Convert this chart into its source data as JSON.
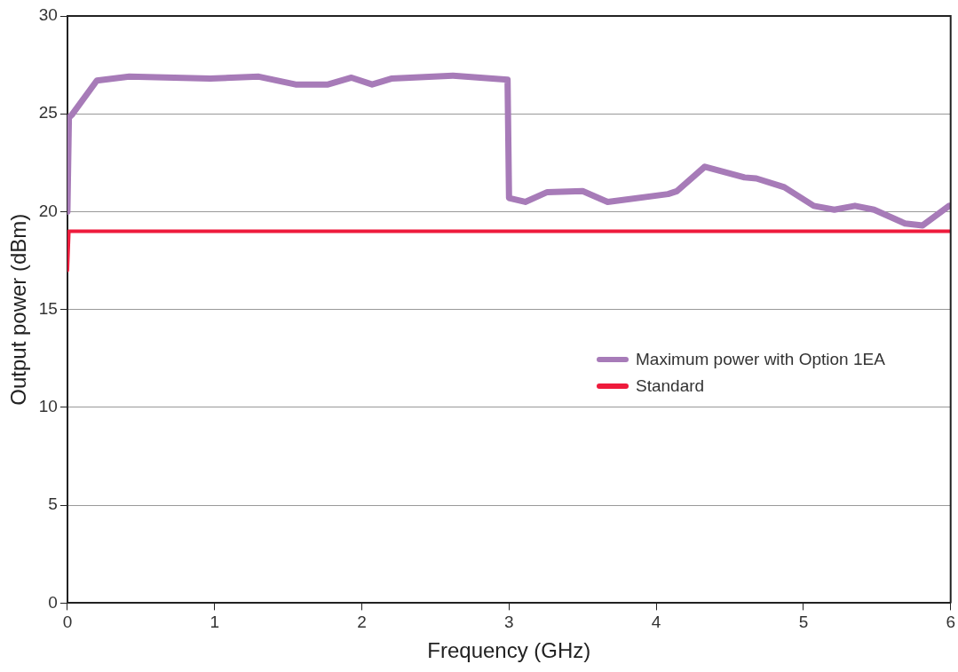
{
  "chart_data": {
    "type": "line",
    "xlabel": "Frequency (GHz)",
    "ylabel": "Output power (dBm)",
    "xlim": [
      0,
      6
    ],
    "xticks": [
      0,
      1,
      2,
      3,
      4,
      5,
      6
    ],
    "ylim": [
      0,
      30
    ],
    "yticks": [
      0,
      5,
      10,
      15,
      20,
      25,
      30
    ],
    "grid": "y",
    "legend": "right",
    "marker": "none",
    "line_style": "solid",
    "series": [
      {
        "name": "Maximum power with Option 1EA",
        "color": "#a77bb8",
        "x": [
          0,
          0.01,
          0.03,
          0.2,
          0.42,
          0.97,
          1.3,
          1.55,
          1.77,
          1.93,
          2.07,
          2.2,
          2.62,
          2.99,
          3.0,
          3.11,
          3.26,
          3.5,
          3.67,
          4.08,
          4.14,
          4.33,
          4.6,
          4.68,
          4.87,
          5.07,
          5.21,
          5.35,
          5.48,
          5.69,
          5.81,
          5.99
        ],
        "values": [
          20,
          24.8,
          24.95,
          26.7,
          26.9,
          26.8,
          26.9,
          26.5,
          26.5,
          26.85,
          26.5,
          26.8,
          26.95,
          26.75,
          20.7,
          20.5,
          21,
          21.05,
          20.5,
          20.9,
          21.05,
          22.3,
          21.75,
          21.7,
          21.25,
          20.3,
          20.1,
          20.3,
          20.1,
          19.4,
          19.3,
          20.3
        ]
      },
      {
        "name": "Standard",
        "color": "#ee1b3c",
        "x": [
          0,
          0.01,
          6
        ],
        "values": [
          17,
          19,
          19
        ]
      }
    ]
  }
}
